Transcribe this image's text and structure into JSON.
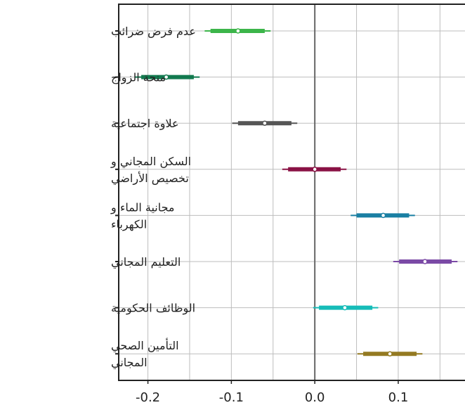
{
  "chart_data": {
    "type": "interval",
    "orientation": "horizontal",
    "categories": [
      [
        "عدم فرض ضرائب"
      ],
      [
        "منحة الزواج"
      ],
      [
        "علاوة اجتماعية"
      ],
      [
        "السكن المجاني و",
        "تخصيص الأراضي"
      ],
      [
        "مجانية الماء و",
        "الكهرباء"
      ],
      [
        "التعليم المجاني"
      ],
      [
        "الوظائف الحكومية"
      ],
      [
        "التأمين الصحي",
        "المجاني"
      ]
    ],
    "series": [
      {
        "point": -0.092,
        "inner": [
          -0.125,
          -0.06
        ],
        "outer": [
          -0.132,
          -0.053
        ],
        "color": "#3cb54a"
      },
      {
        "point": -0.178,
        "inner": [
          -0.208,
          -0.145
        ],
        "outer": [
          -0.216,
          -0.138
        ],
        "color": "#127a4f"
      },
      {
        "point": -0.06,
        "inner": [
          -0.092,
          -0.028
        ],
        "outer": [
          -0.099,
          -0.021
        ],
        "color": "#555555"
      },
      {
        "point": 0.0,
        "inner": [
          -0.032,
          0.031
        ],
        "outer": [
          -0.039,
          0.038
        ],
        "color": "#8a1245"
      },
      {
        "point": 0.082,
        "inner": [
          0.05,
          0.113
        ],
        "outer": [
          0.043,
          0.12
        ],
        "color": "#1a7fa3"
      },
      {
        "point": 0.132,
        "inner": [
          0.101,
          0.164
        ],
        "outer": [
          0.094,
          0.171
        ],
        "color": "#7b4aa6"
      },
      {
        "point": 0.036,
        "inner": [
          0.005,
          0.069
        ],
        "outer": [
          -0.002,
          0.076
        ],
        "color": "#16bcb8"
      },
      {
        "point": 0.09,
        "inner": [
          0.058,
          0.122
        ],
        "outer": [
          0.051,
          0.129
        ],
        "color": "#947a22"
      }
    ],
    "xlim": [
      -0.235,
      0.18
    ],
    "xticks": [
      -0.2,
      -0.1,
      0.0,
      0.1
    ],
    "xtick_labels": [
      "-0.2",
      "-0.1",
      "0.0",
      "0.1"
    ],
    "zero_line": 0.0,
    "grid": true,
    "title": "",
    "xlabel": "",
    "ylabel": ""
  }
}
